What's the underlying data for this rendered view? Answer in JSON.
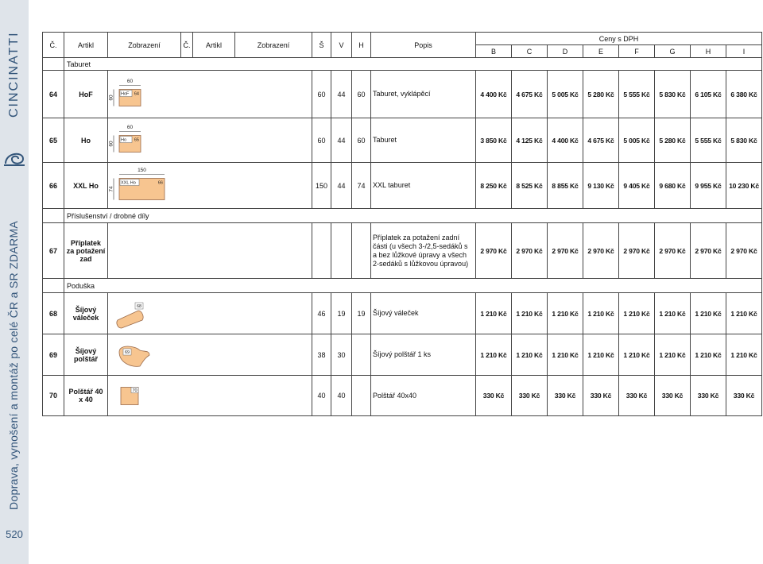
{
  "sidebar": {
    "brand": "CINCINATTI",
    "note": "Doprava, vynošení a montáž po celé ČR a SR ZDARMA",
    "page_number": "520"
  },
  "table": {
    "headers": [
      "Č.",
      "Artikl",
      "Zobrazení",
      "Č.",
      "Artikl",
      "Zobrazení",
      "Š",
      "V",
      "H",
      "Popis"
    ],
    "price_group": "Ceny s DPH",
    "price_columns": [
      "B",
      "C",
      "D",
      "E",
      "F",
      "G",
      "H",
      "I"
    ],
    "rows": [
      {
        "section": "Taburet"
      },
      {
        "number": "64",
        "article": "HoF",
        "drawing": {
          "label": "HoF",
          "badge": "64",
          "width_label": "60",
          "height_label": "60"
        },
        "w": "60",
        "d": "44",
        "h": "60",
        "description": "Taburet, vyklápěcí",
        "prices": [
          "4 400 Kč",
          "4 675 Kč",
          "5 005 Kč",
          "5 280 Kč",
          "5 555 Kč",
          "5 830 Kč",
          "6 105 Kč",
          "6 380 Kč"
        ]
      },
      {
        "number": "65",
        "article": "Ho",
        "drawing": {
          "label": "Ho",
          "badge": "65",
          "width_label": "60",
          "height_label": "60"
        },
        "w": "60",
        "d": "44",
        "h": "60",
        "description": "Taburet",
        "prices": [
          "3 850 Kč",
          "4 125 Kč",
          "4 400 Kč",
          "4 675 Kč",
          "5 005 Kč",
          "5 280 Kč",
          "5 555 Kč",
          "5 830 Kč"
        ]
      },
      {
        "number": "66",
        "article": "XXL Ho",
        "drawing": {
          "label": "XXL Ho",
          "badge": "66",
          "width_label": "150",
          "height_label": "74"
        },
        "w": "150",
        "d": "44",
        "h": "74",
        "description": "XXL taburet",
        "prices": [
          "8 250 Kč",
          "8 525 Kč",
          "8 855 Kč",
          "9 130 Kč",
          "9 405 Kč",
          "9 680 Kč",
          "9 955 Kč",
          "10 230 Kč"
        ]
      },
      {
        "section": "Příslušenství / drobné díly"
      },
      {
        "number": "67",
        "article": "Příplatek za potažení zad",
        "description": "Příplatek za potažení zadní části (u všech 3-/2,5-sedáků s a bez lůžkové úpravy a všech 2-sedáků s lůžkovou úpravou)",
        "prices": [
          "2 970 Kč",
          "2 970 Kč",
          "2 970 Kč",
          "2 970 Kč",
          "2 970 Kč",
          "2 970 Kč",
          "2 970 Kč",
          "2 970 Kč"
        ]
      },
      {
        "section": "Poduška"
      },
      {
        "number": "68",
        "article": "Šíjový váleček",
        "drawing": {
          "badge": "68"
        },
        "w": "46",
        "d": "19",
        "h": "19",
        "description": "Šíjový váleček",
        "prices": [
          "1 210 Kč",
          "1 210 Kč",
          "1 210 Kč",
          "1 210 Kč",
          "1 210 Kč",
          "1 210 Kč",
          "1 210 Kč",
          "1 210 Kč"
        ]
      },
      {
        "number": "69",
        "article": "Šíjový polštář",
        "drawing": {
          "badge": "69"
        },
        "w": "38",
        "d": "30",
        "description": "Šíjový polštář 1 ks",
        "prices": [
          "1 210 Kč",
          "1 210 Kč",
          "1 210 Kč",
          "1 210 Kč",
          "1 210 Kč",
          "1 210 Kč",
          "1 210 Kč",
          "1 210 Kč"
        ]
      },
      {
        "number": "70",
        "article": "Polštář 40 x 40",
        "drawing": {
          "badge": "70"
        },
        "w": "40",
        "d": "40",
        "description": "Polštář 40x40",
        "prices": [
          "330 Kč",
          "330 Kč",
          "330 Kč",
          "330 Kč",
          "330 Kč",
          "330 Kč",
          "330 Kč",
          "330 Kč"
        ]
      }
    ]
  }
}
